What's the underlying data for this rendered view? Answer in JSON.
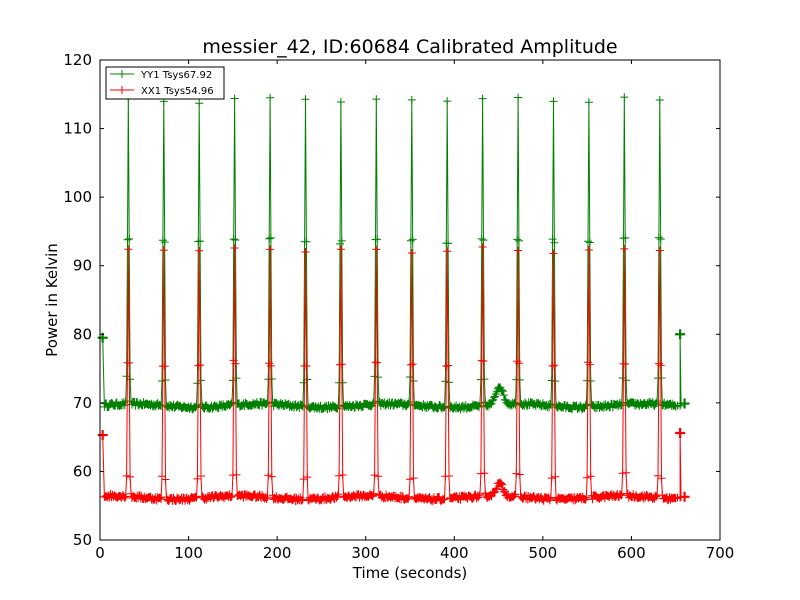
{
  "chart_data": {
    "type": "line",
    "title": "messier_42, ID:60684 Calibrated Amplitude",
    "xlabel": "Time (seconds)",
    "ylabel": "Power in Kelvin",
    "xlim": [
      0,
      700
    ],
    "ylim": [
      50,
      120
    ],
    "xticks": [
      "0",
      "100",
      "200",
      "300",
      "400",
      "500",
      "600",
      "700"
    ],
    "yticks": [
      "50",
      "60",
      "70",
      "80",
      "90",
      "100",
      "110",
      "120"
    ],
    "grid": false,
    "legend_position": "top-left",
    "series": [
      {
        "name": "YY1 Tsys67.92",
        "color": "#008000",
        "start": [
          3,
          79.5
        ],
        "baseline": 69.6,
        "peak": 114.2,
        "bump": {
          "x": 451,
          "value": 72.3
        },
        "end": [
          655,
          80.0
        ],
        "tail": [
          660,
          69.9
        ]
      },
      {
        "name": "XX1 Tsys54.96",
        "color": "#ff0000",
        "start": [
          3,
          65.3
        ],
        "baseline": 56.2,
        "peak": 92.3,
        "bump": {
          "x": 451,
          "value": 58.0
        },
        "end": [
          655,
          65.6
        ],
        "tail": [
          660,
          56.3
        ]
      }
    ],
    "peak_x": [
      32,
      72,
      112,
      152,
      192,
      232,
      272,
      312,
      352,
      392,
      432,
      472,
      512,
      552,
      592,
      632
    ]
  }
}
